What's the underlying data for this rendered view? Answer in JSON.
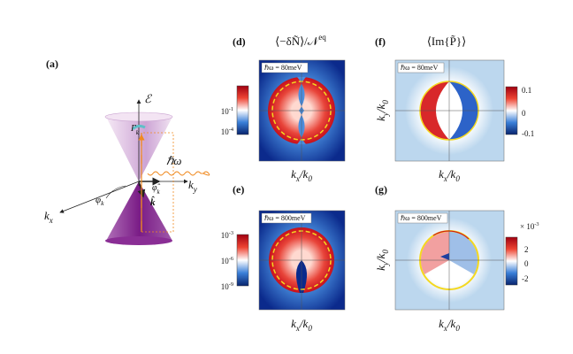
{
  "panels": {
    "a": {
      "label": "(a)",
      "energy": "ℰ",
      "gamma": "Γ_k",
      "photon": "ℏω",
      "ky": "k_y",
      "kx": "k_x",
      "phi": "φ_k",
      "phihat": "φ̂_k",
      "khat": "k̂"
    },
    "d": {
      "label": "(d)",
      "title": "⟨−δÑ⟩/𝒩^{eq}",
      "annotation": "ℏω = 80meV",
      "xlabel": "k_x/k_0",
      "colorbar_ticks": [
        "10^{-1}",
        "10^{-4}"
      ]
    },
    "f": {
      "label": "(f)",
      "title": "⟨Im{P̃}⟩",
      "annotation": "ℏω = 80meV",
      "xlabel": "k_x/k_0",
      "ylabel": "k_y/k_0",
      "colorbar_ticks": [
        "0.1",
        "0",
        "-0.1"
      ]
    },
    "e": {
      "label": "(e)",
      "annotation": "ℏω = 800meV",
      "xlabel": "k_x/k_0",
      "colorbar_ticks": [
        "10^{-3}",
        "10^{-6}",
        "10^{-9}"
      ]
    },
    "g": {
      "label": "(g)",
      "annotation": "ℏω = 800meV",
      "xlabel": "k_x/k_0",
      "ylabel": "k_y/k_0",
      "colorbar_multiplier": "× 10^{-3}",
      "colorbar_ticks": [
        "2",
        "0",
        "-2"
      ]
    }
  }
}
